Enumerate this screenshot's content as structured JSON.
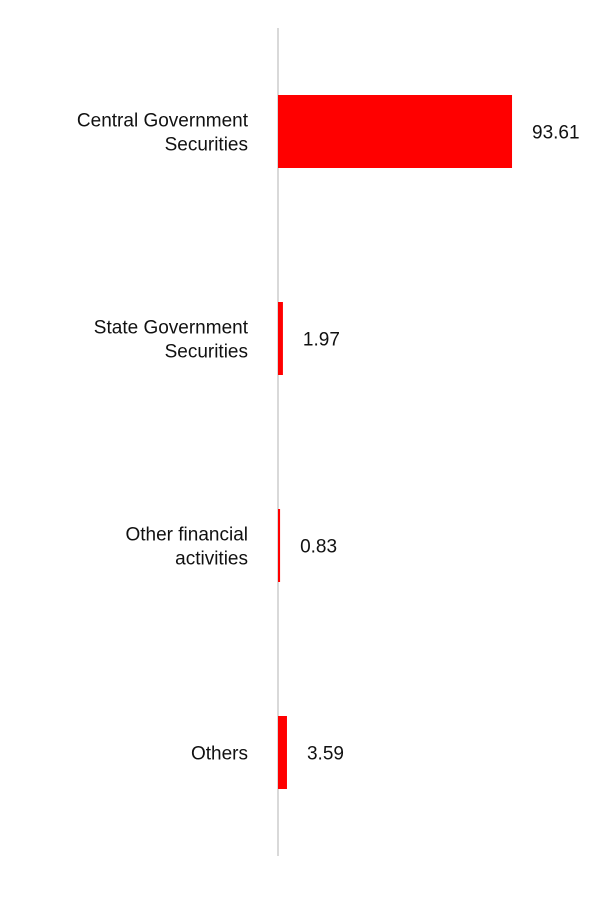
{
  "chart_data": {
    "type": "bar",
    "orientation": "horizontal",
    "title": "",
    "xlabel": "",
    "ylabel": "",
    "categories": [
      [
        "Central Government",
        "Securities"
      ],
      [
        "State Government",
        "Securities"
      ],
      [
        "Other financial",
        "activities"
      ],
      [
        "Others"
      ]
    ],
    "values": [
      93.61,
      1.97,
      0.83,
      3.59
    ],
    "value_labels": [
      "93.61",
      "1.97",
      "0.83",
      "3.59"
    ],
    "xlim": [
      0,
      100
    ],
    "grid": false,
    "legend": "none",
    "bar_color": "#ff0000",
    "axis_color": "#d9d9d9"
  }
}
